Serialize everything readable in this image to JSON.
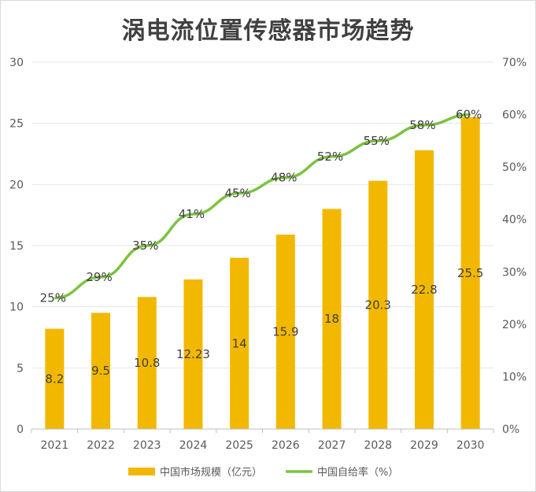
{
  "title": "涡电流位置传感器市场趋势",
  "colors": {
    "bar": "#F2B800",
    "line": "#7CC242",
    "grid": "#e6e6e6",
    "axis": "#bfbfbf"
  },
  "chart_data": {
    "type": "bar+line",
    "title": "涡电流位置传感器市场趋势",
    "categories": [
      "2021",
      "2022",
      "2023",
      "2024",
      "2025",
      "2026",
      "2027",
      "2028",
      "2029",
      "2030"
    ],
    "series": [
      {
        "name": "中国市场规模（亿元）",
        "type": "bar",
        "axis": "left",
        "values": [
          8.2,
          9.5,
          10.8,
          12.23,
          14,
          15.9,
          18,
          20.3,
          22.8,
          25.5
        ],
        "labels": [
          "8.2",
          "9.5",
          "10.8",
          "12.23",
          "14",
          "15.9",
          "18",
          "20.3",
          "22.8",
          "25.5"
        ]
      },
      {
        "name": "中国自给率（%）",
        "type": "line",
        "axis": "right",
        "values": [
          25,
          29,
          35,
          41,
          45,
          48,
          52,
          55,
          58,
          60
        ],
        "labels": [
          "25%",
          "29%",
          "35%",
          "41%",
          "45%",
          "48%",
          "52%",
          "55%",
          "58%",
          "60%"
        ]
      }
    ],
    "y_left": {
      "min": 0,
      "max": 30,
      "ticks": [
        "0",
        "5",
        "10",
        "15",
        "20",
        "25",
        "30"
      ]
    },
    "y_right": {
      "min": 0,
      "max": 70,
      "ticks": [
        "0%",
        "10%",
        "20%",
        "30%",
        "40%",
        "50%",
        "60%",
        "70%"
      ]
    },
    "grid": true,
    "legend": "bottom"
  }
}
